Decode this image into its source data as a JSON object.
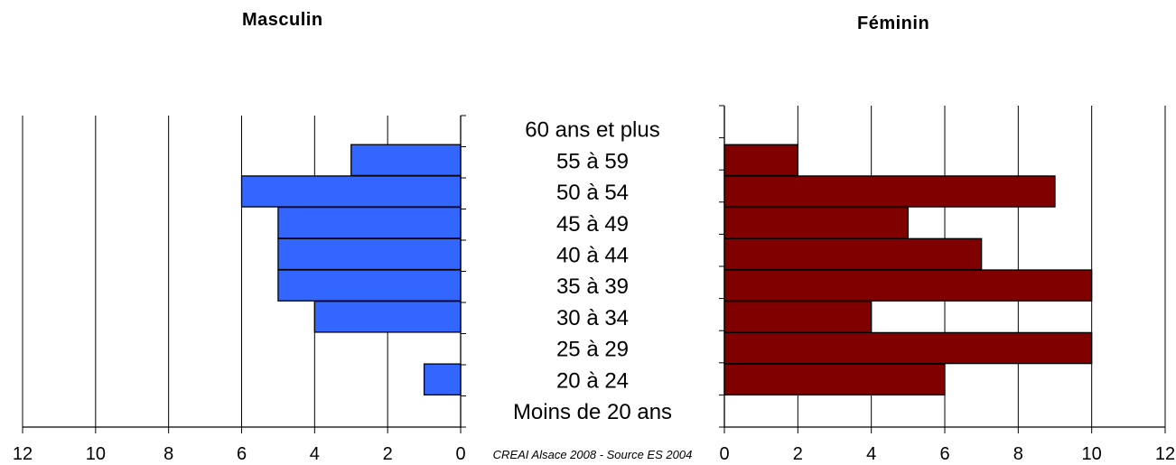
{
  "chart_data": {
    "type": "bar",
    "subtype": "population-pyramid",
    "categories": [
      "Moins de 20 ans",
      "20 à 24",
      "25 à 29",
      "30 à 34",
      "35 à 39",
      "40 à 44",
      "45 à 49",
      "50 à 54",
      "55 à 59",
      "60 ans et plus"
    ],
    "series": [
      {
        "name": "Masculin",
        "values": [
          0,
          1,
          0,
          4,
          5,
          5,
          5,
          6,
          3,
          0
        ],
        "color": "#3366FF"
      },
      {
        "name": "Féminin",
        "values": [
          0,
          6,
          10,
          4,
          10,
          7,
          5,
          9,
          2,
          0
        ],
        "color": "#800000"
      }
    ],
    "xlim": [
      0,
      12
    ],
    "ticks": [
      "0",
      "2",
      "4",
      "6",
      "8",
      "10",
      "12"
    ],
    "grid": true,
    "source_note": "CREAI Alsace 2008 - Source ES 2004"
  },
  "titles": {
    "left": "Masculin",
    "right": "Féminin"
  }
}
